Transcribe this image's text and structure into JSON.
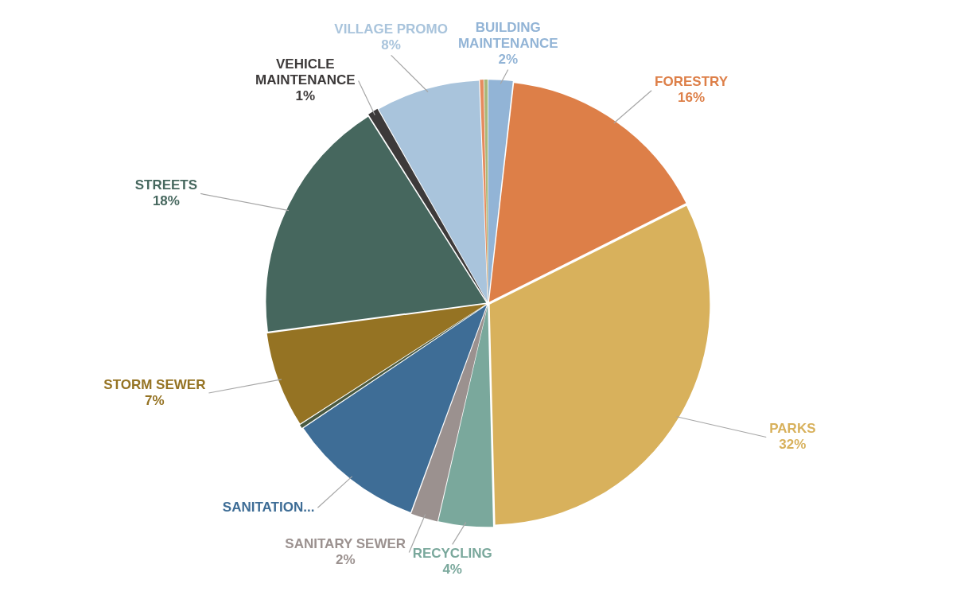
{
  "chart_data": {
    "type": "pie",
    "categories": [
      "BUILDING MAINTENANCE",
      "FORESTRY",
      "PARKS",
      "RECYCLING",
      "SANITARY SEWER",
      "SANITATION...",
      null,
      "STORM SEWER",
      "STREETS",
      "VEHICLE MAINTENANCE",
      "VILLAGE PROMO",
      null,
      null
    ],
    "values": [
      1.8,
      15.8,
      32.0,
      4.0,
      2.0,
      10.0,
      0.3,
      7.0,
      18.1,
      0.8,
      7.6,
      0.3,
      0.3
    ],
    "colors": [
      "#92b4d6",
      "#dd7f48",
      "#d8b15c",
      "#7aa89c",
      "#9b918f",
      "#3e6d96",
      "#4a5a40",
      "#957323",
      "#46675e",
      "#3d3a3a",
      "#a9c4dc",
      "#e58b5e",
      "#a9b77a"
    ],
    "value_labels": [
      "2%",
      "16%",
      "32%",
      "4%",
      "2%",
      null,
      null,
      "7%",
      "18%",
      "1%",
      "8%",
      null,
      null
    ]
  }
}
